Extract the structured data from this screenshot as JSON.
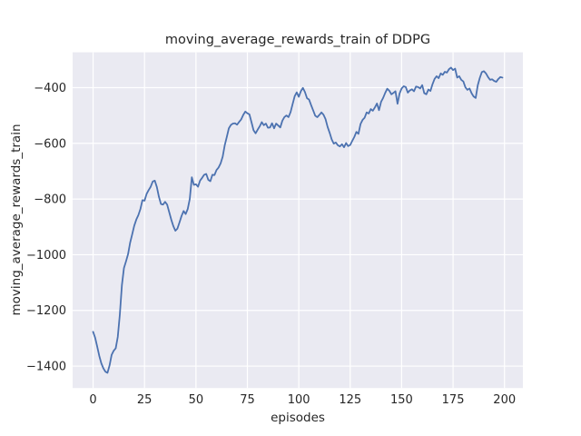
{
  "chart_data": {
    "type": "line",
    "title": "moving_average_rewards_train of DDPG",
    "xlabel": "episodes",
    "ylabel": "moving_average_rewards_train",
    "legend": null,
    "grid": true,
    "x_ticks": [
      0,
      25,
      50,
      75,
      100,
      125,
      150,
      175,
      200
    ],
    "x_tick_labels": [
      "0",
      "25",
      "50",
      "75",
      "100",
      "125",
      "150",
      "175",
      "200"
    ],
    "y_ticks": [
      -400,
      -600,
      -800,
      -1000,
      -1200,
      -1400
    ],
    "y_tick_labels": [
      "−400",
      "−600",
      "−800",
      "−1000",
      "−1200",
      "−1400"
    ],
    "xlim": [
      -9.95,
      208.95
    ],
    "ylim": [
      -1478.8,
      -273.2
    ],
    "style": {
      "line_color": "#4C72B0",
      "plot_background": "#EAEAF2",
      "grid_color": "#FFFFFF",
      "text_color": "#262626",
      "figure_background": "#FFFFFF"
    },
    "series": [
      {
        "name": "moving_average_rewards_train",
        "x0": 0,
        "dx": 1,
        "values": [
          -1277,
          -1298,
          -1330,
          -1363,
          -1390,
          -1408,
          -1420,
          -1424,
          -1398,
          -1360,
          -1345,
          -1336,
          -1295,
          -1215,
          -1110,
          -1048,
          -1024,
          -998,
          -957,
          -927,
          -896,
          -874,
          -858,
          -836,
          -804,
          -806,
          -782,
          -768,
          -756,
          -737,
          -734,
          -757,
          -792,
          -818,
          -820,
          -810,
          -820,
          -847,
          -874,
          -897,
          -914,
          -906,
          -884,
          -861,
          -843,
          -854,
          -836,
          -800,
          -722,
          -749,
          -747,
          -756,
          -734,
          -724,
          -713,
          -710,
          -731,
          -736,
          -713,
          -714,
          -696,
          -687,
          -672,
          -648,
          -607,
          -577,
          -546,
          -534,
          -529,
          -528,
          -533,
          -523,
          -514,
          -498,
          -486,
          -492,
          -496,
          -524,
          -553,
          -564,
          -551,
          -539,
          -524,
          -535,
          -529,
          -544,
          -543,
          -528,
          -546,
          -529,
          -536,
          -543,
          -519,
          -506,
          -500,
          -506,
          -488,
          -459,
          -431,
          -417,
          -433,
          -413,
          -401,
          -416,
          -438,
          -443,
          -463,
          -482,
          -501,
          -506,
          -498,
          -489,
          -497,
          -513,
          -541,
          -562,
          -586,
          -601,
          -597,
          -607,
          -611,
          -603,
          -614,
          -599,
          -610,
          -606,
          -591,
          -577,
          -559,
          -566,
          -531,
          -516,
          -508,
          -489,
          -493,
          -477,
          -483,
          -471,
          -457,
          -481,
          -451,
          -437,
          -419,
          -404,
          -411,
          -424,
          -419,
          -413,
          -458,
          -421,
          -403,
          -395,
          -398,
          -418,
          -410,
          -406,
          -413,
          -396,
          -398,
          -403,
          -391,
          -420,
          -424,
          -407,
          -412,
          -388,
          -369,
          -359,
          -366,
          -349,
          -354,
          -343,
          -346,
          -334,
          -328,
          -337,
          -332,
          -364,
          -359,
          -372,
          -378,
          -399,
          -408,
          -403,
          -420,
          -432,
          -437,
          -392,
          -365,
          -344,
          -341,
          -349,
          -362,
          -372,
          -370,
          -376,
          -379,
          -369,
          -362,
          -364
        ]
      }
    ]
  }
}
